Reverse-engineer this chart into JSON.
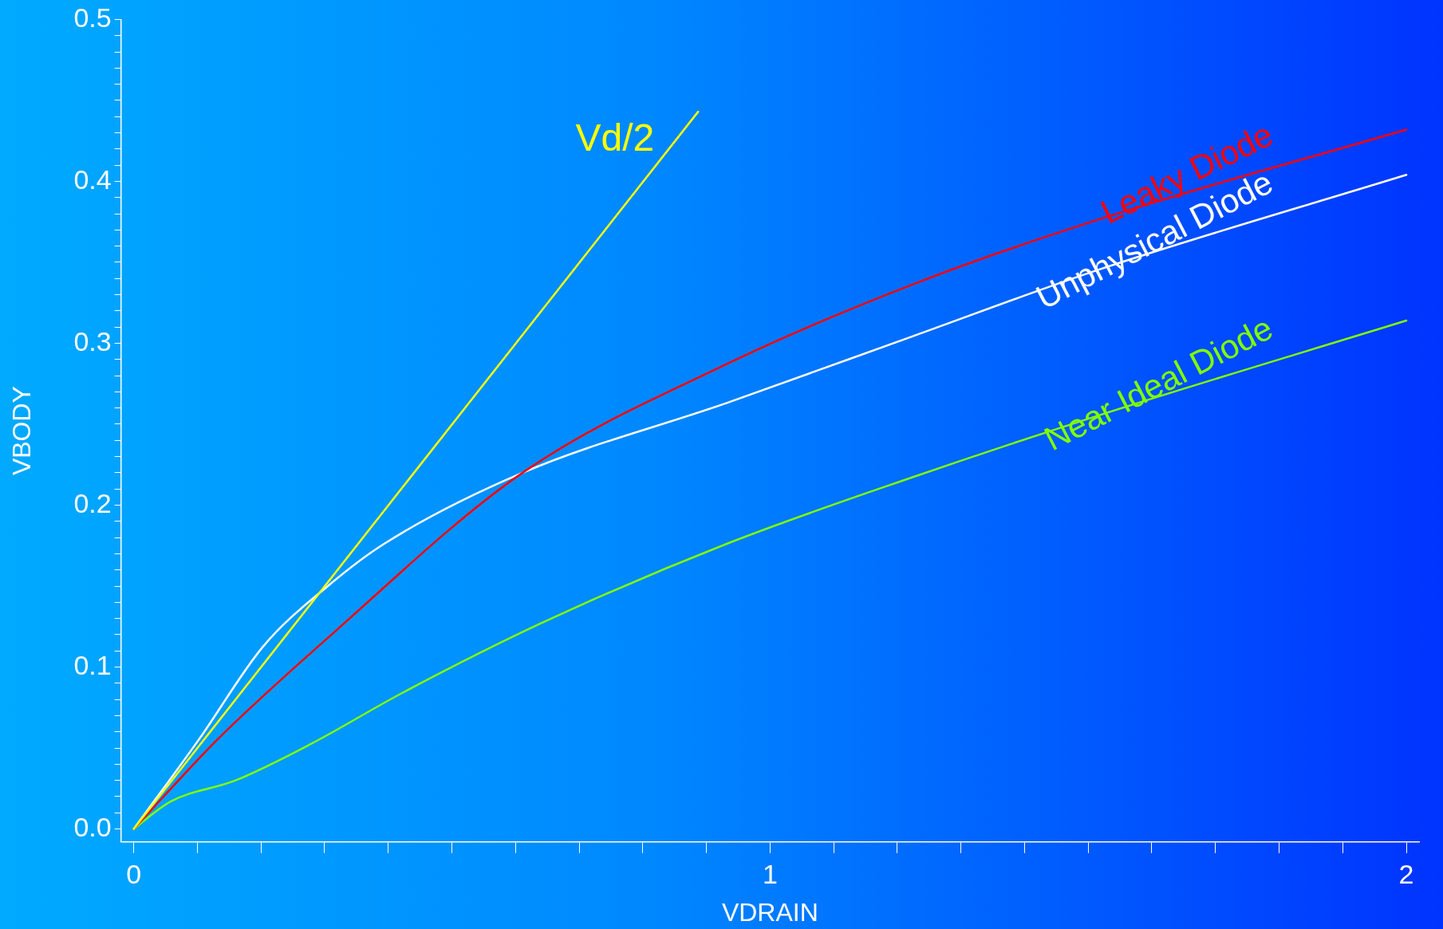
{
  "chart_data": {
    "type": "line",
    "xlabel": "VDRAIN",
    "ylabel": "VBODY",
    "series": [
      {
        "name": "Vd/2",
        "color": "#ffff00",
        "x": [
          0,
          0.887
        ],
        "values": [
          0,
          0.443
        ]
      },
      {
        "name": "Leaky Diode",
        "color": "#ff0000",
        "x": [
          0,
          0.131,
          0.305,
          0.611,
          0.931,
          1.222,
          1.513,
          2.0
        ],
        "values": [
          0,
          0.055,
          0.118,
          0.22,
          0.287,
          0.336,
          0.376,
          0.432
        ]
      },
      {
        "name": "Unphysical Diode",
        "color": "#ffffff",
        "x": [
          0,
          0.102,
          0.204,
          0.305,
          0.393,
          0.611,
          0.931,
          1.222,
          1.513,
          2.0
        ],
        "values": [
          0,
          0.055,
          0.113,
          0.15,
          0.176,
          0.22,
          0.263,
          0.304,
          0.345,
          0.404
        ]
      },
      {
        "name": "Near Ideal Diode",
        "color": "#80ff00",
        "x": [
          0,
          0.058,
          0.16,
          0.276,
          0.422,
          0.64,
          0.931,
          1.222,
          1.513,
          2.0
        ],
        "values": [
          0,
          0.017,
          0.03,
          0.052,
          0.084,
          0.127,
          0.176,
          0.217,
          0.255,
          0.314
        ]
      }
    ],
    "xlim": [
      -0.02,
      2.02
    ],
    "xticks": [
      0,
      {
        "value": 0.1,
        "label": null
      },
      {
        "value": 0.2,
        "label": null
      },
      {
        "value": 0.3,
        "label": null
      },
      {
        "value": 0.4,
        "label": null
      },
      {
        "value": 0.5,
        "label": null
      },
      {
        "value": 0.6,
        "label": null
      },
      {
        "value": 0.7,
        "label": null
      },
      {
        "value": 0.8,
        "label": null
      },
      {
        "value": 0.9,
        "label": null
      },
      1,
      {
        "value": 1.1,
        "label": null
      },
      {
        "value": 1.2,
        "label": null
      },
      {
        "value": 1.3,
        "label": null
      },
      {
        "value": 1.4,
        "label": null
      },
      {
        "value": 1.5,
        "label": null
      },
      {
        "value": 1.6,
        "label": null
      },
      {
        "value": 1.7,
        "label": null
      },
      {
        "value": 1.8,
        "label": null
      },
      {
        "value": 1.9,
        "label": null
      },
      2
    ],
    "ylim": [
      -0.008,
      0.5
    ],
    "yticks": [
      {
        "value": 0,
        "label": "0.0"
      },
      {
        "value": 0.01,
        "label": null
      },
      {
        "value": 0.02,
        "label": null
      },
      {
        "value": 0.03,
        "label": null
      },
      {
        "value": 0.04,
        "label": null
      },
      {
        "value": 0.05,
        "label": null
      },
      {
        "value": 0.06,
        "label": null
      },
      {
        "value": 0.07,
        "label": null
      },
      {
        "value": 0.08,
        "label": null
      },
      {
        "value": 0.09,
        "label": null
      },
      {
        "value": 0.1,
        "label": "0.1"
      },
      {
        "value": 0.11,
        "label": null
      },
      {
        "value": 0.12,
        "label": null
      },
      {
        "value": 0.13,
        "label": null
      },
      {
        "value": 0.14,
        "label": null
      },
      {
        "value": 0.15,
        "label": null
      },
      {
        "value": 0.16,
        "label": null
      },
      {
        "value": 0.17,
        "label": null
      },
      {
        "value": 0.18,
        "label": null
      },
      {
        "value": 0.19,
        "label": null
      },
      {
        "value": 0.2,
        "label": "0.2"
      },
      {
        "value": 0.21,
        "label": null
      },
      {
        "value": 0.22,
        "label": null
      },
      {
        "value": 0.23,
        "label": null
      },
      {
        "value": 0.24,
        "label": null
      },
      {
        "value": 0.25,
        "label": null
      },
      {
        "value": 0.26,
        "label": null
      },
      {
        "value": 0.27,
        "label": null
      },
      {
        "value": 0.28,
        "label": null
      },
      {
        "value": 0.29,
        "label": null
      },
      {
        "value": 0.3,
        "label": "0.3"
      },
      {
        "value": 0.31,
        "label": null
      },
      {
        "value": 0.32,
        "label": null
      },
      {
        "value": 0.33,
        "label": null
      },
      {
        "value": 0.34,
        "label": null
      },
      {
        "value": 0.35,
        "label": null
      },
      {
        "value": 0.36,
        "label": null
      },
      {
        "value": 0.37,
        "label": null
      },
      {
        "value": 0.38,
        "label": null
      },
      {
        "value": 0.39,
        "label": null
      },
      {
        "value": 0.4,
        "label": "0.4"
      },
      {
        "value": 0.41,
        "label": null
      },
      {
        "value": 0.42,
        "label": null
      },
      {
        "value": 0.43,
        "label": null
      },
      {
        "value": 0.44,
        "label": null
      },
      {
        "value": 0.45,
        "label": null
      },
      {
        "value": 0.46,
        "label": null
      },
      {
        "value": 0.47,
        "label": null
      },
      {
        "value": 0.48,
        "label": null
      },
      {
        "value": 0.49,
        "label": null
      },
      {
        "value": 0.5,
        "label": "0.5"
      }
    ],
    "grid": false,
    "legend": false,
    "marker": "none",
    "line_style": "solid"
  }
}
